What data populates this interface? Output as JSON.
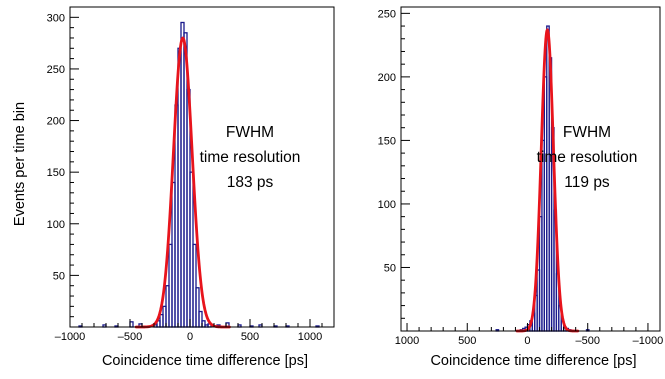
{
  "chart_data": [
    {
      "type": "histogram",
      "ylabel": "Events per time bin",
      "xlabel": "Coincidence time difference [ps]",
      "xlim": [
        -1000,
        1200
      ],
      "ylim": [
        0,
        310
      ],
      "x_ticks": [
        -1000,
        -500,
        0,
        500,
        1000
      ],
      "x_tick_labels": [
        "–1000",
        "–500",
        "0",
        "500",
        "1000"
      ],
      "y_ticks": [
        50,
        100,
        150,
        200,
        250,
        300
      ],
      "y_tick_labels": [
        "50",
        "100",
        "150",
        "200",
        "250",
        "300"
      ],
      "annotation": [
        "FWHM",
        "time resolution",
        "183 ps"
      ],
      "grid": false,
      "histogram_color": "#1a1a8c",
      "fit_color": "#e8141c",
      "histogram": {
        "bin_width": 25,
        "bin_centers": [
          -287.5,
          -262.5,
          -237.5,
          -212.5,
          -187.5,
          -162.5,
          -137.5,
          -112.5,
          -87.5,
          -62.5,
          -37.5,
          -12.5,
          12.5,
          37.5,
          62.5,
          87.5,
          112.5,
          137.5
        ],
        "counts": [
          2,
          6,
          12,
          20,
          40,
          80,
          140,
          215,
          270,
          295,
          285,
          230,
          150,
          80,
          38,
          15,
          6,
          2
        ]
      },
      "background": {
        "bin_width": 25,
        "bin_centers": [
          -912.5,
          -712.5,
          -612.5,
          -487.5,
          -412.5,
          162.5,
          237.5,
          312.5,
          412.5,
          512.5,
          587.5,
          712.5,
          812.5,
          1062.5
        ],
        "counts": [
          1,
          2,
          1,
          5,
          3,
          3,
          2,
          4,
          2,
          1,
          2,
          1,
          1,
          1
        ]
      },
      "fit": {
        "function": "gaussian",
        "amplitude": 280,
        "mean": -60,
        "fwhm": 183
      }
    },
    {
      "type": "histogram",
      "xlabel": "Coincidence time difference [ps]",
      "xlim": [
        1050,
        -1100
      ],
      "ylim": [
        0,
        255
      ],
      "x_ticks": [
        1000,
        500,
        0,
        -500,
        -1000
      ],
      "x_tick_labels": [
        "1000",
        "500",
        "0",
        "–500",
        "–1000"
      ],
      "y_ticks": [
        50,
        100,
        150,
        200,
        250
      ],
      "y_tick_labels": [
        "50",
        "100",
        "150",
        "200",
        "250"
      ],
      "annotation": [
        "FWHM",
        "time resolution",
        "119 ps"
      ],
      "grid": false,
      "histogram_color": "#1a1a8c",
      "fit_color": "#e8141c",
      "histogram": {
        "bin_width": 20,
        "bin_centers": [
          50,
          30,
          10,
          -10,
          -30,
          -50,
          -70,
          -90,
          -110,
          -130,
          -150,
          -170,
          -190,
          -210,
          -230,
          -250,
          -270,
          -290,
          -310,
          -330,
          -350
        ],
        "counts": [
          1,
          2,
          3,
          5,
          8,
          14,
          28,
          48,
          90,
          150,
          200,
          240,
          215,
          160,
          95,
          45,
          20,
          8,
          3,
          2,
          1
        ]
      },
      "background": {
        "bin_width": 20,
        "bin_centers": [
          -500,
          250
        ],
        "counts": [
          1,
          1
        ]
      },
      "fit": {
        "function": "gaussian",
        "amplitude": 237,
        "mean": -165,
        "fwhm": 119
      }
    }
  ]
}
